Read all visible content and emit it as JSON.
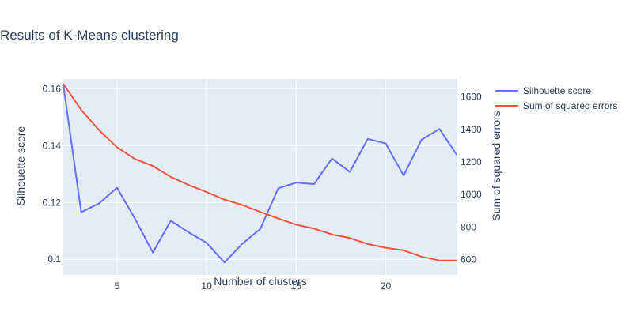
{
  "chart_data": {
    "type": "line",
    "title": "Results of K-Means clustering",
    "xlabel": "Number of clusters",
    "ylabel_left": "Silhouette score",
    "ylabel_right": "Sum of squared errors",
    "xlim": [
      2,
      24
    ],
    "ylim_left": [
      0.0945,
      0.1635
    ],
    "ylim_right": [
      505,
      1710
    ],
    "x_ticks": [
      5,
      10,
      15,
      20
    ],
    "y_left_ticks": [
      0.1,
      0.12,
      0.14,
      0.16
    ],
    "y_left_tick_labels": [
      "0.1",
      "0.12",
      "0.14",
      "0.16"
    ],
    "y_right_ticks": [
      600,
      800,
      1000,
      1200,
      1400,
      1600
    ],
    "grid": true,
    "legend_position": "top-right",
    "x": [
      2,
      3,
      4,
      5,
      6,
      7,
      8,
      9,
      10,
      11,
      12,
      13,
      14,
      15,
      16,
      17,
      18,
      19,
      20,
      21,
      22,
      23,
      24
    ],
    "series": [
      {
        "name": "Silhouette score",
        "axis": "left",
        "color": "#636efa",
        "values": [
          0.1615,
          0.1166,
          0.1197,
          0.1252,
          0.1143,
          0.1024,
          0.1136,
          0.1095,
          0.1058,
          0.0989,
          0.1055,
          0.1107,
          0.125,
          0.127,
          0.1265,
          0.1355,
          0.1308,
          0.1424,
          0.1408,
          0.1295,
          0.1421,
          0.1459,
          0.1365
        ]
      },
      {
        "name": "Sum of squared errors",
        "axis": "right",
        "color": "#ef553b",
        "values": [
          1680,
          1520,
          1395,
          1290,
          1218,
          1175,
          1108,
          1058,
          1015,
          968,
          935,
          893,
          852,
          814,
          790,
          754,
          732,
          695,
          672,
          656,
          617,
          594,
          594
        ]
      }
    ]
  }
}
